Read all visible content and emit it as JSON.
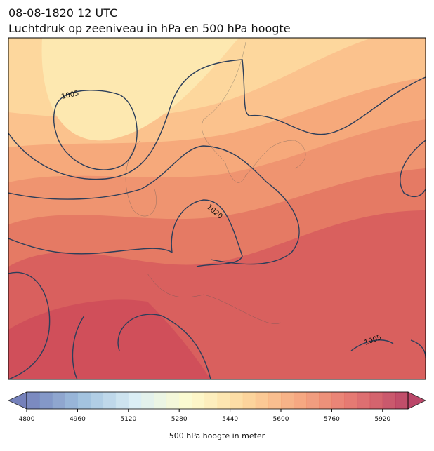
{
  "header": {
    "title": "08-08-1820 12 UTC",
    "subtitle": "Luchtdruk op zeeniveau in hPa en 500 hPa hoogte"
  },
  "map": {
    "contour_labels": [
      "1005",
      "1020",
      "1005"
    ]
  },
  "colorbar": {
    "range": [
      4800,
      6000
    ],
    "step": 40,
    "colors": [
      "#5e6cb0",
      "#8fb5d8",
      "#d6ecf3",
      "#fdfbc6",
      "#fdd28e",
      "#f49a6c",
      "#e0605a",
      "#b0284f"
    ],
    "ticks": [
      4800,
      4960,
      5120,
      5280,
      5440,
      5600,
      5760,
      5920
    ],
    "label": "500 hPa hoogte in meter"
  }
}
